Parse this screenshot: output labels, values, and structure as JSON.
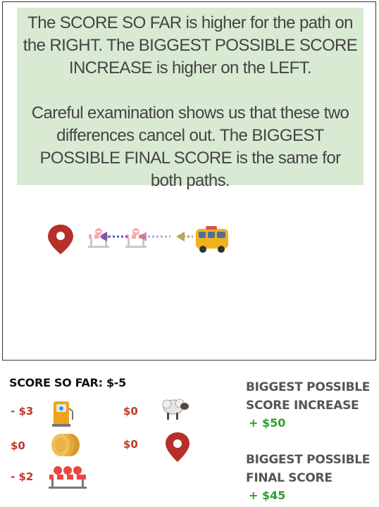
{
  "explanation": {
    "paragraph1": "The SCORE SO FAR is higher for the path on the RIGHT. The BIGGEST POSSIBLE SCORE INCREASE is higher on the LEFT.",
    "paragraph2": "Careful examination shows us that these two differences cancel out. The BIGGEST POSSIBLE FINAL SCORE is the same for both paths."
  },
  "path_icons": [
    "location-pin-icon",
    "roadblock-icon",
    "roadblock-icon",
    "van-icon"
  ],
  "scoreboard": {
    "score_so_far_label": "SCORE SO FAR: $-5",
    "items": [
      {
        "icon": "gas-pump-icon",
        "value": "- $3"
      },
      {
        "icon": "coins-icon",
        "value": "$0"
      },
      {
        "icon": "roadblock-icon",
        "value": "- $2"
      },
      {
        "icon": "sheep-icon",
        "value": "$0"
      },
      {
        "icon": "location-pin-icon",
        "value": "$0"
      }
    ],
    "biggest_increase_label": "BIGGEST POSSIBLE SCORE INCREASE",
    "biggest_increase_value": "+ $50",
    "biggest_final_label": "BIGGEST POSSIBLE FINAL SCORE",
    "biggest_final_value": "+ $45"
  },
  "colors": {
    "explanation_bg": "#d9ead3",
    "money_red": "#c0392b",
    "money_green": "#2e9e2e",
    "arrow_blue": "#4a56e0",
    "arrow_purple": "#b7a3d6",
    "arrow_olive": "#b7a65a",
    "pin_red": "#b5302a"
  }
}
